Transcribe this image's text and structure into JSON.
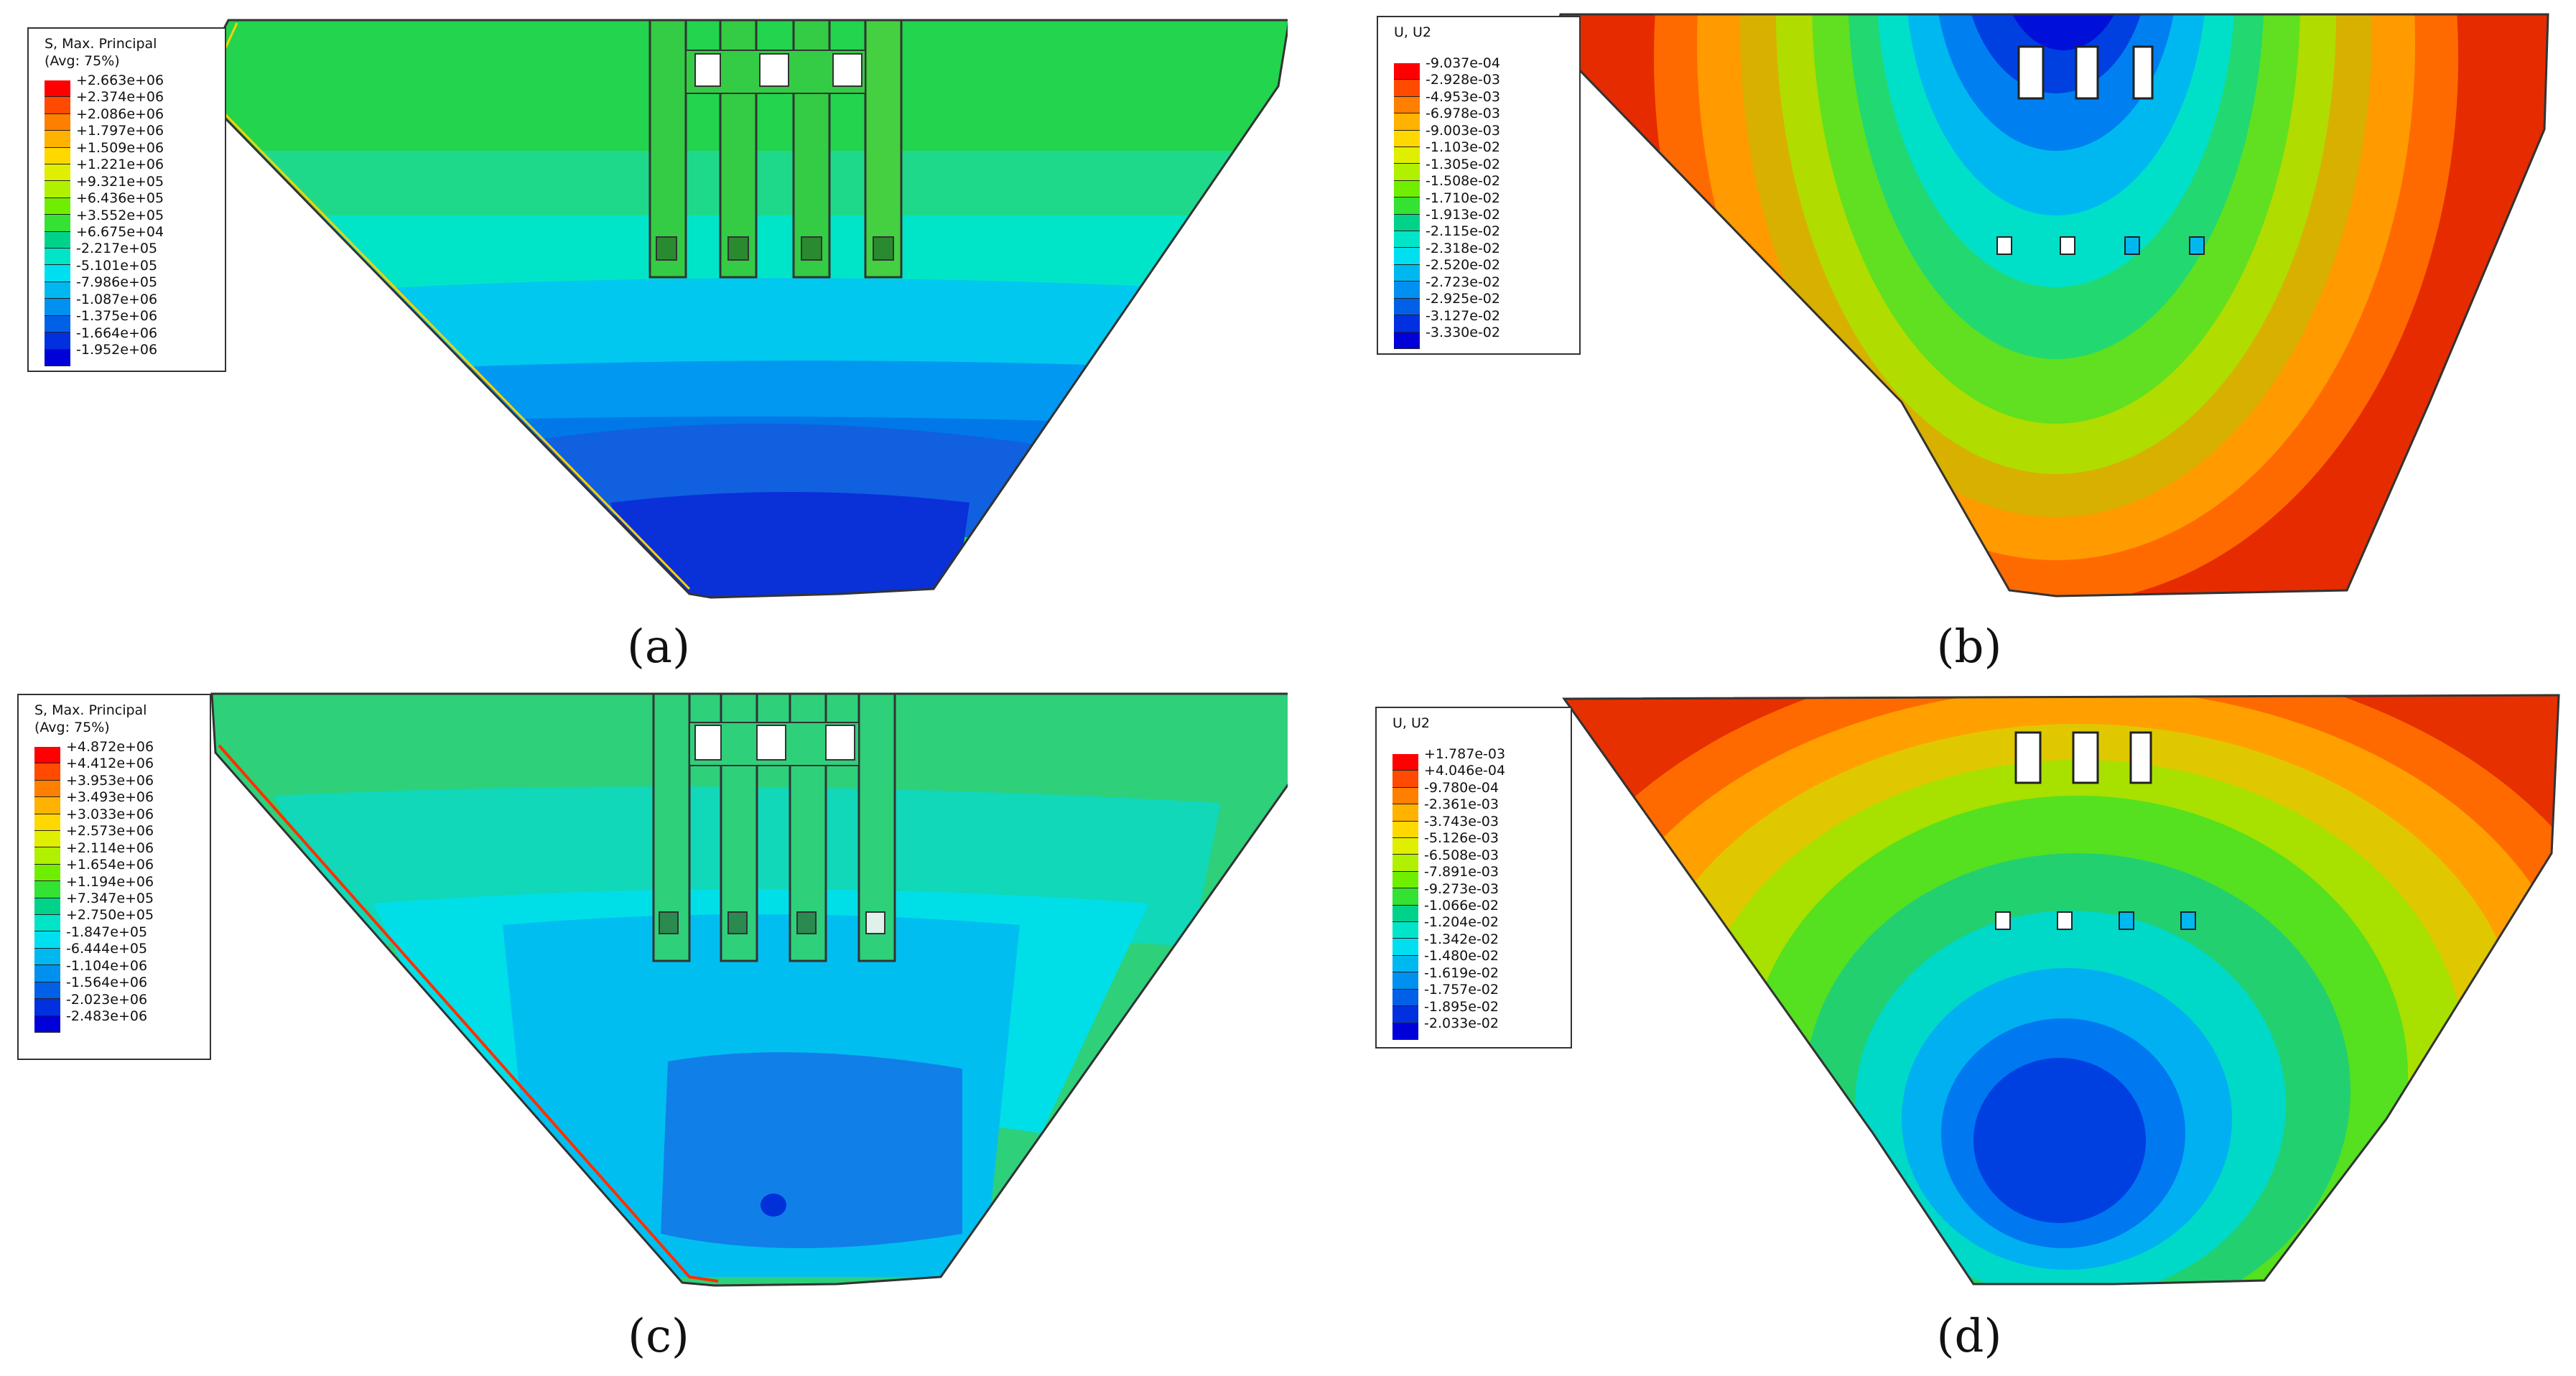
{
  "panels": [
    {
      "id": "a",
      "caption": "(a)",
      "legend": {
        "title1": "S, Max. Principal",
        "title2": "(Avg: 75%)",
        "ticks": [
          "+2.663e+06",
          "+2.374e+06",
          "+2.086e+06",
          "+1.797e+06",
          "+1.509e+06",
          "+1.221e+06",
          "+9.321e+05",
          "+6.436e+05",
          "+3.552e+05",
          "+6.675e+04",
          "-2.217e+05",
          "-5.101e+05",
          "-7.986e+05",
          "-1.087e+06",
          "-1.375e+06",
          "-1.664e+06",
          "-1.952e+06"
        ]
      }
    },
    {
      "id": "b",
      "caption": "(b)",
      "legend": {
        "title1": "U, U2",
        "title2": "",
        "ticks": [
          "-9.037e-04",
          "-2.928e-03",
          "-4.953e-03",
          "-6.978e-03",
          "-9.003e-03",
          "-1.103e-02",
          "-1.305e-02",
          "-1.508e-02",
          "-1.710e-02",
          "-1.913e-02",
          "-2.115e-02",
          "-2.318e-02",
          "-2.520e-02",
          "-2.723e-02",
          "-2.925e-02",
          "-3.127e-02",
          "-3.330e-02"
        ]
      }
    },
    {
      "id": "c",
      "caption": "(c)",
      "legend": {
        "title1": "S, Max. Principal",
        "title2": "(Avg: 75%)",
        "ticks": [
          "+4.872e+06",
          "+4.412e+06",
          "+3.953e+06",
          "+3.493e+06",
          "+3.033e+06",
          "+2.573e+06",
          "+2.114e+06",
          "+1.654e+06",
          "+1.194e+06",
          "+7.347e+05",
          "+2.750e+05",
          "-1.847e+05",
          "-6.444e+05",
          "-1.104e+06",
          "-1.564e+06",
          "-2.023e+06",
          "-2.483e+06"
        ]
      }
    },
    {
      "id": "d",
      "caption": "(d)",
      "legend": {
        "title1": "U, U2",
        "title2": "",
        "ticks": [
          "+1.787e-03",
          "+4.046e-04",
          "-9.780e-04",
          "-2.361e-03",
          "-3.743e-03",
          "-5.126e-03",
          "-6.508e-03",
          "-7.891e-03",
          "-9.273e-03",
          "-1.066e-02",
          "-1.204e-02",
          "-1.342e-02",
          "-1.480e-02",
          "-1.619e-02",
          "-1.757e-02",
          "-1.895e-02",
          "-2.033e-02"
        ]
      }
    }
  ],
  "colormap": [
    "#ff0000",
    "#ff4a00",
    "#ff7f00",
    "#ffb200",
    "#ffd800",
    "#e0ee00",
    "#b0f000",
    "#70ee00",
    "#33e233",
    "#00d28a",
    "#00e5c8",
    "#00dff0",
    "#00b8f0",
    "#0090f0",
    "#0060e8",
    "#0030e0",
    "#0000d8"
  ]
}
